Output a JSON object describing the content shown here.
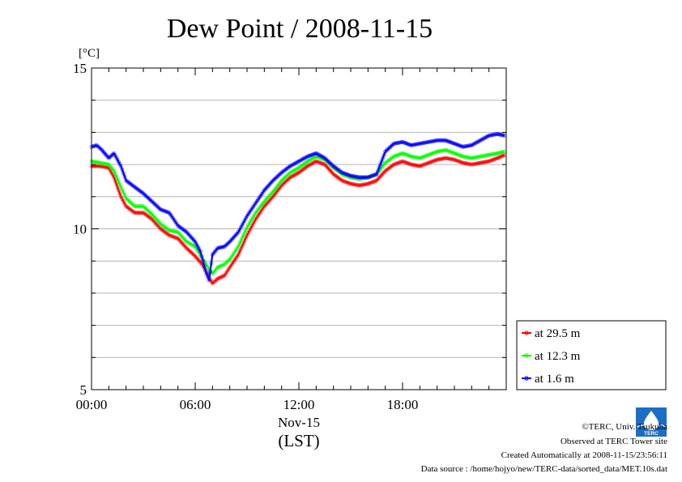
{
  "chart_data": {
    "type": "line",
    "title": "Dew Point / 2008-11-15",
    "yunit": "[°C]",
    "xlabel_date": "Nov-15",
    "xlabel_tz": "(LST)",
    "ylim": [
      5,
      15
    ],
    "xlim": [
      0,
      24
    ],
    "yticks": [
      5,
      10,
      15
    ],
    "ytick_labels": [
      "5",
      "10",
      "15"
    ],
    "xticks": [
      0,
      6,
      12,
      18
    ],
    "xtick_labels": [
      "00:00",
      "06:00",
      "12:00",
      "18:00"
    ],
    "grid": true,
    "legend_position": "bottom-right",
    "series": [
      {
        "name": "at 29.5 m",
        "color": "#ff0000",
        "x": [
          0,
          0.5,
          1,
          1.3,
          1.7,
          2,
          2.5,
          3,
          3.5,
          4,
          4.5,
          5,
          5.5,
          6,
          6.4,
          6.8,
          7,
          7.3,
          7.7,
          8,
          8.5,
          9,
          9.5,
          10,
          10.5,
          11,
          11.5,
          12,
          12.5,
          13,
          13.5,
          14,
          14.5,
          15,
          15.5,
          16,
          16.5,
          17,
          17.5,
          18,
          18.5,
          19,
          19.5,
          20,
          20.5,
          21,
          21.5,
          22,
          22.5,
          23,
          23.5,
          23.9
        ],
        "values": [
          11.95,
          11.95,
          11.9,
          11.6,
          11.0,
          10.7,
          10.5,
          10.5,
          10.3,
          10.0,
          9.8,
          9.7,
          9.4,
          9.15,
          8.9,
          8.5,
          8.3,
          8.45,
          8.55,
          8.8,
          9.2,
          9.8,
          10.3,
          10.7,
          11.0,
          11.35,
          11.6,
          11.75,
          11.95,
          12.1,
          12.0,
          11.7,
          11.5,
          11.4,
          11.35,
          11.4,
          11.5,
          11.8,
          12.0,
          12.1,
          12.0,
          11.95,
          12.05,
          12.15,
          12.2,
          12.15,
          12.05,
          12.0,
          12.05,
          12.1,
          12.2,
          12.3
        ]
      },
      {
        "name": "at 12.3 m",
        "color": "#00ff00",
        "x": [
          0,
          0.5,
          1,
          1.3,
          1.7,
          2,
          2.5,
          3,
          3.5,
          4,
          4.5,
          5,
          5.5,
          6,
          6.4,
          6.8,
          7,
          7.3,
          7.7,
          8,
          8.5,
          9,
          9.5,
          10,
          10.5,
          11,
          11.5,
          12,
          12.5,
          13,
          13.5,
          14,
          14.5,
          15,
          15.5,
          16,
          16.5,
          17,
          17.5,
          18,
          18.5,
          19,
          19.5,
          20,
          20.5,
          21,
          21.5,
          22,
          22.5,
          23,
          23.5,
          23.9
        ],
        "values": [
          12.1,
          12.05,
          12.0,
          11.8,
          11.3,
          10.95,
          10.7,
          10.7,
          10.45,
          10.15,
          9.95,
          9.9,
          9.6,
          9.45,
          9.1,
          8.75,
          8.6,
          8.8,
          8.9,
          9.05,
          9.45,
          10.05,
          10.5,
          10.85,
          11.15,
          11.5,
          11.75,
          11.9,
          12.1,
          12.25,
          12.15,
          11.9,
          11.7,
          11.6,
          11.55,
          11.6,
          11.7,
          12.05,
          12.25,
          12.35,
          12.25,
          12.2,
          12.3,
          12.4,
          12.45,
          12.35,
          12.25,
          12.2,
          12.25,
          12.3,
          12.35,
          12.4
        ]
      },
      {
        "name": "at 1.6 m",
        "color": "#0000ff",
        "x": [
          0,
          0.3,
          0.6,
          1,
          1.3,
          1.7,
          2,
          2.5,
          3,
          3.5,
          4,
          4.5,
          5,
          5.5,
          6,
          6.3,
          6.6,
          6.8,
          7,
          7.3,
          7.7,
          8,
          8.5,
          9,
          9.5,
          10,
          10.5,
          11,
          11.5,
          12,
          12.5,
          13,
          13.5,
          14,
          14.5,
          15,
          15.5,
          16,
          16.5,
          17,
          17.5,
          18,
          18.5,
          19,
          19.5,
          20,
          20.5,
          21,
          21.5,
          22,
          22.5,
          23,
          23.5,
          23.9
        ],
        "values": [
          12.55,
          12.6,
          12.45,
          12.2,
          12.35,
          11.95,
          11.5,
          11.3,
          11.1,
          10.85,
          10.6,
          10.5,
          10.1,
          9.9,
          9.6,
          9.3,
          8.7,
          8.4,
          9.2,
          9.4,
          9.45,
          9.6,
          9.9,
          10.4,
          10.8,
          11.2,
          11.5,
          11.75,
          11.95,
          12.1,
          12.25,
          12.35,
          12.2,
          11.95,
          11.75,
          11.65,
          11.6,
          11.6,
          11.7,
          12.4,
          12.65,
          12.7,
          12.6,
          12.65,
          12.7,
          12.75,
          12.75,
          12.65,
          12.55,
          12.6,
          12.75,
          12.9,
          12.95,
          12.9
        ]
      }
    ]
  },
  "credits": {
    "copyright": "©TERC, Univ. Tsukuba",
    "observed": "Observed at TERC Tower site",
    "created": "Created Automatically at 2008-11-15/23:56:11",
    "source": "Data source : /home/hojyo/new/TERC-data/sorted_data/MET.10s.dat"
  },
  "logo": {
    "text": "TERC",
    "color": "#1a6fc4"
  }
}
